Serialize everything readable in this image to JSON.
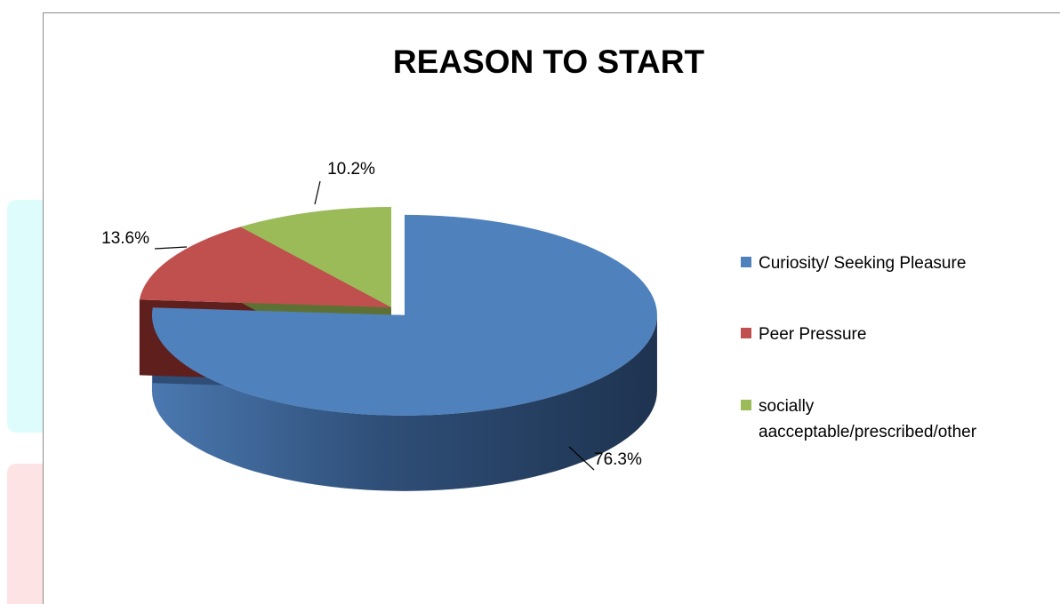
{
  "chart_data": {
    "type": "pie",
    "title": "REASON TO START",
    "categories": [
      "Curiosity/ Seeking Pleasure",
      "Peer Pressure",
      "socially aacceptable/prescribed/other"
    ],
    "legend_lines": [
      [
        "Curiosity/ Seeking Pleasure"
      ],
      [
        "Peer Pressure"
      ],
      [
        "socially",
        "aacceptable/prescribed/other"
      ]
    ],
    "values": [
      76.3,
      13.6,
      10.2
    ],
    "data_labels": [
      "76.3%",
      "13.6%",
      "10.2%"
    ],
    "colors": [
      "#4f81bd",
      "#c0504d",
      "#9bbb59"
    ],
    "side_colors": [
      "#2f4d75",
      "#5e1f1d",
      "#5e7135"
    ],
    "exploded": [
      true,
      false,
      false
    ],
    "style": "3d",
    "legend_position": "right"
  }
}
